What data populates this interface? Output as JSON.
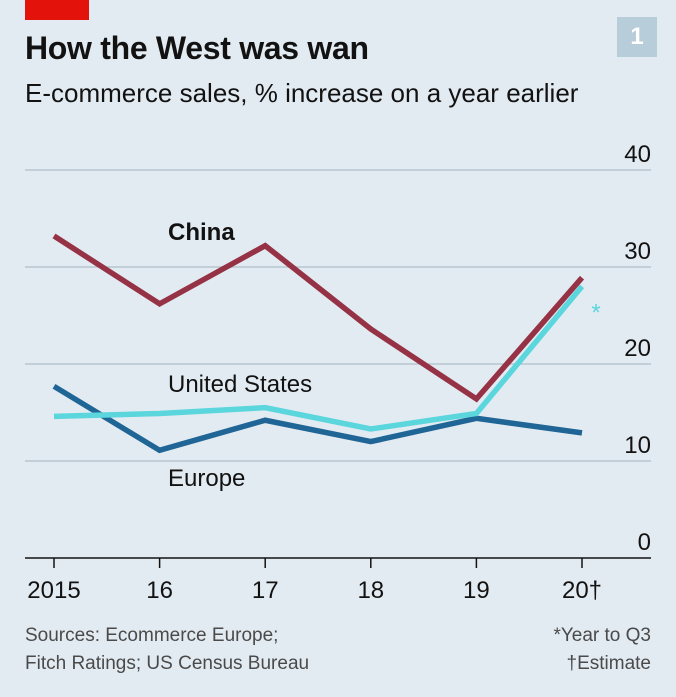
{
  "header": {
    "number_badge": "1",
    "title": "How the West was wan",
    "subtitle": "E-commerce sales, % increase on a year earlier"
  },
  "colors": {
    "background": "#e3ebf2",
    "accent_red": "#e3120b",
    "china": "#963245",
    "united_states": "#5bd6dc",
    "europe": "#1f6596",
    "grid": "#b7c4cf",
    "axis": "#121212"
  },
  "chart_data": {
    "type": "line",
    "title": "How the West was wan",
    "subtitle": "E-commerce sales, % increase on a year earlier",
    "categories": [
      "2015",
      "16",
      "17",
      "18",
      "19",
      "20†"
    ],
    "ylim": [
      0,
      40
    ],
    "yticks": [
      "0",
      "10",
      "20",
      "30",
      "40"
    ],
    "grid": true,
    "y_axis_side": "right",
    "series": [
      {
        "name": "China",
        "color": "#963245",
        "values": [
          33.2,
          26.2,
          32.2,
          23.6,
          16.4,
          28.9
        ]
      },
      {
        "name": "United States",
        "color": "#5bd6dc",
        "values": [
          14.6,
          14.9,
          15.5,
          13.3,
          14.9,
          28.0
        ],
        "annotation": "*"
      },
      {
        "name": "Europe",
        "color": "#1f6596",
        "values": [
          17.7,
          11.1,
          14.2,
          12.0,
          14.4,
          12.9
        ]
      }
    ]
  },
  "footer": {
    "sources_line1": "Sources: Ecommerce Europe;",
    "sources_line2": "Fitch Ratings; US Census Bureau",
    "note_line1": "*Year to Q3",
    "note_line2": "†Estimate"
  }
}
